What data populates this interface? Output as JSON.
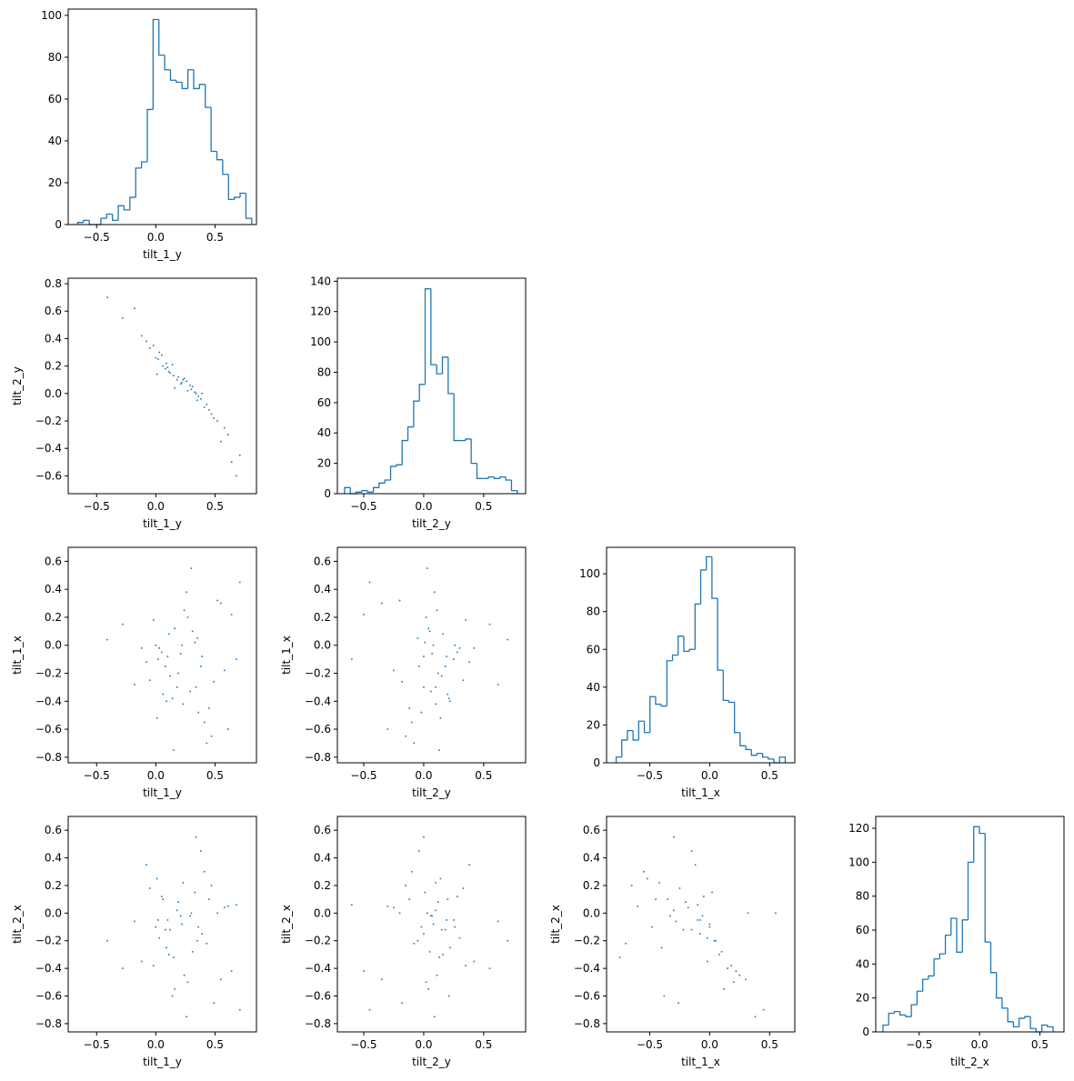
{
  "chart_data": [
    {
      "type": "histogram",
      "xlabel": "tilt_1_y",
      "color": "#1f77b4",
      "bins": [
        -0.66,
        -0.611,
        -0.562,
        -0.513,
        -0.464,
        -0.415,
        -0.366,
        -0.317,
        -0.268,
        -0.219,
        -0.17,
        -0.121,
        -0.072,
        -0.023,
        0.026,
        0.075,
        0.124,
        0.173,
        0.222,
        0.271,
        0.32,
        0.369,
        0.418,
        0.467,
        0.516,
        0.565,
        0.614,
        0.663,
        0.712,
        0.761,
        0.81
      ],
      "values": [
        1,
        2,
        0,
        0,
        3,
        5,
        2,
        9,
        7,
        13,
        27,
        30,
        55,
        98,
        81,
        74,
        69,
        68,
        65,
        74,
        65,
        67,
        56,
        35,
        31,
        24,
        12,
        13,
        15,
        3
      ],
      "xlim": [
        -0.74,
        0.85
      ],
      "ylim": [
        0,
        103
      ],
      "xticks": [
        {
          "value": -0.5,
          "label": "−0.5"
        },
        {
          "value": 0,
          "label": "0.0"
        },
        0.5
      ],
      "yticks": [
        0,
        20,
        40,
        60,
        80,
        100
      ]
    },
    {
      "type": "scatter",
      "xlabel": "tilt_1_y",
      "ylabel": "tilt_2_y",
      "color": "#1f77b4",
      "x": [
        0.02,
        0.35,
        0.18,
        -0.12,
        0.45,
        0.27,
        0.08,
        0.61,
        0.31,
        -0.05,
        0.22,
        0.14,
        0.52,
        0.39,
        0.01,
        -0.28,
        0.19,
        0.43,
        0.71,
        0.05,
        0.29,
        0.11,
        -0.08,
        0.36,
        0.24,
        0.58,
        0.03,
        0.47,
        0.16,
        -0.18,
        0.33,
        0.09,
        0.26,
        0.68,
        0.12,
        -0.02,
        0.41,
        0.21,
        0.55,
        0.06,
        -0.41,
        0.38,
        0.15,
        0.3,
        0.49,
        0.0,
        0.23,
        0.64,
        0.1,
        0.34
      ],
      "values": [
        0.25,
        -0.05,
        0.1,
        0.42,
        -0.12,
        0.02,
        0.18,
        -0.3,
        0.05,
        0.33,
        0.08,
        0.21,
        -0.2,
        0.0,
        0.14,
        0.55,
        0.12,
        -0.08,
        -0.45,
        0.28,
        0.06,
        0.16,
        0.38,
        -0.02,
        0.11,
        -0.25,
        0.3,
        -0.15,
        0.04,
        0.62,
        0.01,
        0.22,
        0.09,
        -0.6,
        0.15,
        0.35,
        -0.1,
        0.07,
        -0.35,
        0.2,
        0.7,
        -0.04,
        0.13,
        0.03,
        -0.18,
        0.26,
        0.1,
        -0.5,
        0.19,
        0.0
      ],
      "xlim": [
        -0.74,
        0.85
      ],
      "ylim": [
        -0.73,
        0.84
      ],
      "xticks": [
        {
          "value": -0.5,
          "label": "−0.5"
        },
        {
          "value": 0,
          "label": "0.0"
        },
        0.5
      ],
      "yticks": [
        {
          "value": -0.6,
          "label": "−0.6"
        },
        {
          "value": -0.4,
          "label": "−0.4"
        },
        {
          "value": -0.2,
          "label": "−0.2"
        },
        {
          "value": 0,
          "label": "0.0"
        },
        0.2,
        0.4,
        0.6,
        0.8
      ]
    },
    {
      "type": "histogram",
      "xlabel": "tilt_2_y",
      "color": "#1f77b4",
      "bins": [
        -0.66,
        -0.612,
        -0.564,
        -0.516,
        -0.468,
        -0.42,
        -0.372,
        -0.324,
        -0.276,
        -0.228,
        -0.18,
        -0.132,
        -0.084,
        -0.036,
        0.012,
        0.06,
        0.108,
        0.156,
        0.204,
        0.252,
        0.3,
        0.348,
        0.396,
        0.444,
        0.492,
        0.54,
        0.588,
        0.636,
        0.684,
        0.732,
        0.78
      ],
      "values": [
        4,
        0,
        1,
        2,
        1,
        4,
        7,
        9,
        18,
        19,
        35,
        44,
        61,
        72,
        135,
        85,
        79,
        90,
        66,
        35,
        35,
        36,
        20,
        10,
        10,
        11,
        10,
        11,
        9,
        2
      ],
      "xlim": [
        -0.72,
        0.85
      ],
      "ylim": [
        0,
        142
      ],
      "xticks": [
        {
          "value": -0.5,
          "label": "−0.5"
        },
        {
          "value": 0,
          "label": "0.0"
        },
        0.5
      ],
      "yticks": [
        0,
        20,
        40,
        60,
        80,
        100,
        120,
        140
      ]
    },
    {
      "type": "scatter",
      "xlabel": "tilt_1_y",
      "ylabel": "tilt_1_x",
      "color": "#1f77b4",
      "x": [
        0.02,
        0.35,
        0.18,
        -0.12,
        0.45,
        0.27,
        0.08,
        0.61,
        0.31,
        -0.05,
        0.22,
        0.14,
        0.52,
        0.39,
        0.01,
        -0.28,
        0.19,
        0.43,
        0.71,
        0.05,
        0.29,
        0.11,
        -0.08,
        0.36,
        0.24,
        0.58,
        0.03,
        0.47,
        0.16,
        -0.18,
        0.33,
        0.09,
        0.26,
        0.68,
        0.12,
        -0.02,
        0.41,
        0.21,
        0.55,
        0.06,
        -0.41,
        0.38,
        0.15,
        0.3,
        0.49,
        0.0,
        0.23,
        0.64,
        0.1,
        0.34
      ],
      "values": [
        -0.1,
        0.05,
        -0.3,
        -0.02,
        -0.45,
        0.2,
        -0.15,
        -0.6,
        0.1,
        -0.25,
        0.0,
        -0.38,
        0.32,
        -0.08,
        -0.52,
        0.15,
        -0.2,
        -0.7,
        0.45,
        -0.05,
        -0.33,
        0.08,
        -0.12,
        -0.48,
        0.25,
        -0.18,
        -0.02,
        -0.65,
        0.12,
        -0.28,
        0.02,
        -0.4,
        0.38,
        -0.1,
        -0.22,
        0.18,
        -0.55,
        -0.06,
        0.3,
        -0.35,
        0.04,
        -0.15,
        -0.75,
        0.55,
        -0.26,
        0.0,
        -0.42,
        0.22,
        -0.08,
        -0.3
      ],
      "xlim": [
        -0.74,
        0.85
      ],
      "ylim": [
        -0.84,
        0.7
      ],
      "xticks": [
        {
          "value": -0.5,
          "label": "−0.5"
        },
        {
          "value": 0,
          "label": "0.0"
        },
        0.5
      ],
      "yticks": [
        {
          "value": -0.8,
          "label": "−0.8"
        },
        {
          "value": -0.6,
          "label": "−0.6"
        },
        {
          "value": -0.4,
          "label": "−0.4"
        },
        {
          "value": -0.2,
          "label": "−0.2"
        },
        {
          "value": 0,
          "label": "0.0"
        },
        0.2,
        0.4,
        0.6
      ]
    },
    {
      "type": "scatter",
      "xlabel": "tilt_2_y",
      "ylabel": "tilt_1_x",
      "color": "#1f77b4",
      "x": [
        0.25,
        -0.05,
        0.1,
        0.42,
        -0.12,
        0.02,
        0.18,
        -0.3,
        0.05,
        0.33,
        0.08,
        0.21,
        -0.2,
        0.0,
        0.14,
        0.55,
        0.12,
        -0.08,
        -0.45,
        0.28,
        0.06,
        0.16,
        0.38,
        -0.02,
        0.11,
        -0.25,
        0.3,
        -0.15,
        0.04,
        0.62,
        0.01,
        0.22,
        0.09,
        -0.6,
        0.15,
        0.35,
        -0.1,
        0.07,
        -0.35,
        0.2,
        0.7,
        -0.04,
        0.13,
        0.03,
        -0.18,
        0.26,
        0.1,
        -0.5,
        0.19,
        0.0
      ],
      "values": [
        -0.1,
        0.05,
        -0.3,
        -0.02,
        -0.45,
        0.2,
        -0.15,
        -0.6,
        0.1,
        -0.25,
        0.0,
        -0.38,
        0.32,
        -0.08,
        -0.52,
        0.15,
        -0.2,
        -0.7,
        0.45,
        -0.05,
        -0.33,
        0.08,
        -0.12,
        -0.48,
        0.25,
        -0.18,
        -0.02,
        -0.65,
        0.12,
        -0.28,
        0.02,
        -0.4,
        0.38,
        -0.1,
        -0.22,
        0.18,
        -0.55,
        -0.06,
        0.3,
        -0.35,
        0.04,
        -0.15,
        -0.75,
        0.55,
        -0.26,
        0.0,
        -0.42,
        0.22,
        -0.08,
        -0.3
      ],
      "xlim": [
        -0.72,
        0.85
      ],
      "ylim": [
        -0.84,
        0.7
      ],
      "xticks": [
        {
          "value": -0.5,
          "label": "−0.5"
        },
        {
          "value": 0,
          "label": "0.0"
        },
        0.5
      ],
      "yticks": [
        {
          "value": -0.8,
          "label": "−0.8"
        },
        {
          "value": -0.6,
          "label": "−0.6"
        },
        {
          "value": -0.4,
          "label": "−0.4"
        },
        {
          "value": -0.2,
          "label": "−0.2"
        },
        {
          "value": 0,
          "label": "0.0"
        },
        0.2,
        0.4,
        0.6
      ]
    },
    {
      "type": "histogram",
      "xlabel": "tilt_1_x",
      "color": "#1f77b4",
      "bins": [
        -0.78,
        -0.733,
        -0.686,
        -0.639,
        -0.592,
        -0.545,
        -0.498,
        -0.451,
        -0.404,
        -0.357,
        -0.31,
        -0.263,
        -0.216,
        -0.169,
        -0.122,
        -0.075,
        -0.028,
        0.019,
        0.066,
        0.113,
        0.16,
        0.207,
        0.254,
        0.301,
        0.348,
        0.395,
        0.442,
        0.489,
        0.536,
        0.583,
        0.63
      ],
      "values": [
        3,
        12,
        17,
        12,
        22,
        16,
        35,
        31,
        30,
        54,
        57,
        67,
        59,
        60,
        84,
        102,
        109,
        87,
        49,
        33,
        32,
        16,
        9,
        7,
        4,
        5,
        3,
        2,
        0,
        3
      ],
      "xlim": [
        -0.86,
        0.71
      ],
      "ylim": [
        0,
        114
      ],
      "xticks": [
        {
          "value": -0.5,
          "label": "−0.5"
        },
        {
          "value": 0,
          "label": "0.0"
        },
        0.5
      ],
      "yticks": [
        0,
        20,
        40,
        60,
        80,
        100
      ]
    },
    {
      "type": "scatter",
      "xlabel": "tilt_1_y",
      "ylabel": "tilt_2_x",
      "color": "#1f77b4",
      "x": [
        0.02,
        0.35,
        0.18,
        -0.12,
        0.45,
        0.27,
        0.08,
        0.61,
        0.31,
        -0.05,
        0.22,
        0.14,
        0.52,
        0.39,
        0.01,
        -0.28,
        0.19,
        0.43,
        0.71,
        0.05,
        0.29,
        0.11,
        -0.08,
        0.36,
        0.24,
        0.58,
        0.03,
        0.47,
        0.16,
        -0.18,
        0.33,
        0.09,
        0.26,
        0.68,
        0.12,
        -0.02,
        0.41,
        0.21,
        0.55,
        0.06,
        -0.41,
        0.38,
        0.15,
        0.3,
        0.49,
        0.0,
        0.23,
        0.64,
        0.1,
        0.34
      ],
      "values": [
        -0.05,
        -0.2,
        0.02,
        -0.35,
        0.1,
        -0.5,
        -0.12,
        0.05,
        -0.28,
        0.18,
        -0.08,
        -0.6,
        0.0,
        -0.15,
        0.25,
        -0.4,
        0.08,
        -0.22,
        -0.7,
        0.12,
        -0.02,
        -0.3,
        0.35,
        -0.1,
        -0.45,
        0.04,
        -0.18,
        0.2,
        -0.55,
        -0.06,
        0.15,
        -0.25,
        -0.75,
        0.06,
        -0.12,
        -0.38,
        0.3,
        -0.02,
        -0.48,
        0.1,
        -0.2,
        0.45,
        -0.32,
        0.0,
        -0.65,
        -0.1,
        0.22,
        -0.42,
        -0.05,
        0.55
      ],
      "xlim": [
        -0.74,
        0.85
      ],
      "ylim": [
        -0.86,
        0.7
      ],
      "xticks": [
        {
          "value": -0.5,
          "label": "−0.5"
        },
        {
          "value": 0,
          "label": "0.0"
        },
        0.5
      ],
      "yticks": [
        {
          "value": -0.8,
          "label": "−0.8"
        },
        {
          "value": -0.6,
          "label": "−0.6"
        },
        {
          "value": -0.4,
          "label": "−0.4"
        },
        {
          "value": -0.2,
          "label": "−0.2"
        },
        {
          "value": 0,
          "label": "0.0"
        },
        0.2,
        0.4,
        0.6
      ]
    },
    {
      "type": "scatter",
      "xlabel": "tilt_2_y",
      "ylabel": "tilt_2_x",
      "color": "#1f77b4",
      "x": [
        0.25,
        -0.05,
        0.1,
        0.42,
        -0.12,
        0.02,
        0.18,
        -0.3,
        0.05,
        0.33,
        0.08,
        0.21,
        -0.2,
        0.0,
        0.14,
        0.55,
        0.12,
        -0.08,
        -0.45,
        0.28,
        0.06,
        0.16,
        0.38,
        -0.02,
        0.11,
        -0.25,
        0.3,
        -0.15,
        0.04,
        0.62,
        0.01,
        0.22,
        0.09,
        -0.6,
        0.15,
        0.35,
        -0.1,
        0.07,
        -0.35,
        0.2,
        0.7,
        -0.04,
        0.13,
        0.03,
        -0.18,
        0.26,
        0.1,
        -0.5,
        0.19,
        0.0
      ],
      "values": [
        -0.05,
        -0.2,
        0.02,
        -0.35,
        0.1,
        -0.5,
        -0.12,
        0.05,
        -0.28,
        0.18,
        -0.08,
        -0.6,
        0.0,
        -0.15,
        0.25,
        -0.4,
        0.08,
        -0.22,
        -0.7,
        0.12,
        -0.02,
        -0.3,
        0.35,
        -0.1,
        -0.45,
        0.04,
        -0.18,
        0.2,
        -0.55,
        -0.06,
        0.15,
        -0.25,
        -0.75,
        0.06,
        -0.12,
        -0.38,
        0.3,
        -0.02,
        -0.48,
        0.1,
        -0.2,
        0.45,
        -0.32,
        0.0,
        -0.65,
        -0.1,
        0.22,
        -0.42,
        -0.05,
        0.55
      ],
      "xlim": [
        -0.72,
        0.85
      ],
      "ylim": [
        -0.86,
        0.7
      ],
      "xticks": [
        {
          "value": -0.5,
          "label": "−0.5"
        },
        {
          "value": 0,
          "label": "0.0"
        },
        0.5
      ],
      "yticks": [
        {
          "value": -0.8,
          "label": "−0.8"
        },
        {
          "value": -0.6,
          "label": "−0.6"
        },
        {
          "value": -0.4,
          "label": "−0.4"
        },
        {
          "value": -0.2,
          "label": "−0.2"
        },
        {
          "value": 0,
          "label": "0.0"
        },
        0.2,
        0.4,
        0.6
      ]
    },
    {
      "type": "scatter",
      "xlabel": "tilt_1_x",
      "ylabel": "tilt_2_x",
      "color": "#1f77b4",
      "x": [
        -0.1,
        0.05,
        -0.3,
        -0.02,
        -0.45,
        0.2,
        -0.15,
        -0.6,
        0.1,
        -0.25,
        0.0,
        -0.38,
        0.32,
        -0.08,
        -0.52,
        0.15,
        -0.2,
        -0.7,
        0.45,
        -0.05,
        -0.33,
        0.08,
        -0.12,
        -0.48,
        0.25,
        -0.18,
        -0.02,
        -0.65,
        0.12,
        -0.28,
        0.02,
        -0.4,
        0.38,
        -0.1,
        -0.22,
        0.18,
        -0.55,
        -0.06,
        0.3,
        -0.35,
        0.04,
        -0.15,
        -0.75,
        0.55,
        -0.26,
        0.0,
        -0.42,
        0.22,
        -0.08,
        -0.3
      ],
      "values": [
        -0.05,
        -0.2,
        0.02,
        -0.35,
        0.1,
        -0.5,
        -0.12,
        0.05,
        -0.28,
        0.18,
        -0.08,
        -0.6,
        0.0,
        -0.15,
        0.25,
        -0.4,
        0.08,
        -0.22,
        -0.7,
        0.12,
        -0.02,
        -0.3,
        0.35,
        -0.1,
        -0.45,
        0.04,
        -0.18,
        0.2,
        -0.55,
        -0.06,
        0.15,
        -0.25,
        -0.75,
        0.06,
        -0.12,
        -0.38,
        0.3,
        -0.02,
        -0.48,
        0.1,
        -0.2,
        0.45,
        -0.32,
        0.0,
        -0.65,
        -0.1,
        0.22,
        -0.42,
        -0.05,
        0.55
      ],
      "xlim": [
        -0.86,
        0.71
      ],
      "ylim": [
        -0.86,
        0.7
      ],
      "xticks": [
        {
          "value": -0.5,
          "label": "−0.5"
        },
        {
          "value": 0,
          "label": "0.0"
        },
        0.5
      ],
      "yticks": [
        {
          "value": -0.8,
          "label": "−0.8"
        },
        {
          "value": -0.6,
          "label": "−0.6"
        },
        {
          "value": -0.4,
          "label": "−0.4"
        },
        {
          "value": -0.2,
          "label": "−0.2"
        },
        {
          "value": 0,
          "label": "0.0"
        },
        0.2,
        0.4,
        0.6
      ]
    },
    {
      "type": "histogram",
      "xlabel": "tilt_2_x",
      "color": "#1f77b4",
      "bins": [
        -0.8,
        -0.753,
        -0.706,
        -0.659,
        -0.612,
        -0.565,
        -0.518,
        -0.471,
        -0.424,
        -0.377,
        -0.33,
        -0.283,
        -0.236,
        -0.189,
        -0.142,
        -0.095,
        -0.048,
        -0.001,
        0.046,
        0.093,
        0.14,
        0.187,
        0.234,
        0.281,
        0.328,
        0.375,
        0.422,
        0.469,
        0.516,
        0.563,
        0.61
      ],
      "values": [
        4,
        11,
        12,
        10,
        9,
        16,
        24,
        31,
        33,
        43,
        46,
        57,
        67,
        47,
        66,
        100,
        121,
        117,
        53,
        35,
        20,
        14,
        6,
        3,
        8,
        9,
        2,
        0,
        4,
        3
      ],
      "xlim": [
        -0.86,
        0.7
      ],
      "ylim": [
        0,
        127
      ],
      "xticks": [
        {
          "value": -0.5,
          "label": "−0.5"
        },
        {
          "value": 0,
          "label": "0.0"
        },
        0.5
      ],
      "yticks": [
        0,
        20,
        40,
        60,
        80,
        100,
        120
      ]
    }
  ]
}
